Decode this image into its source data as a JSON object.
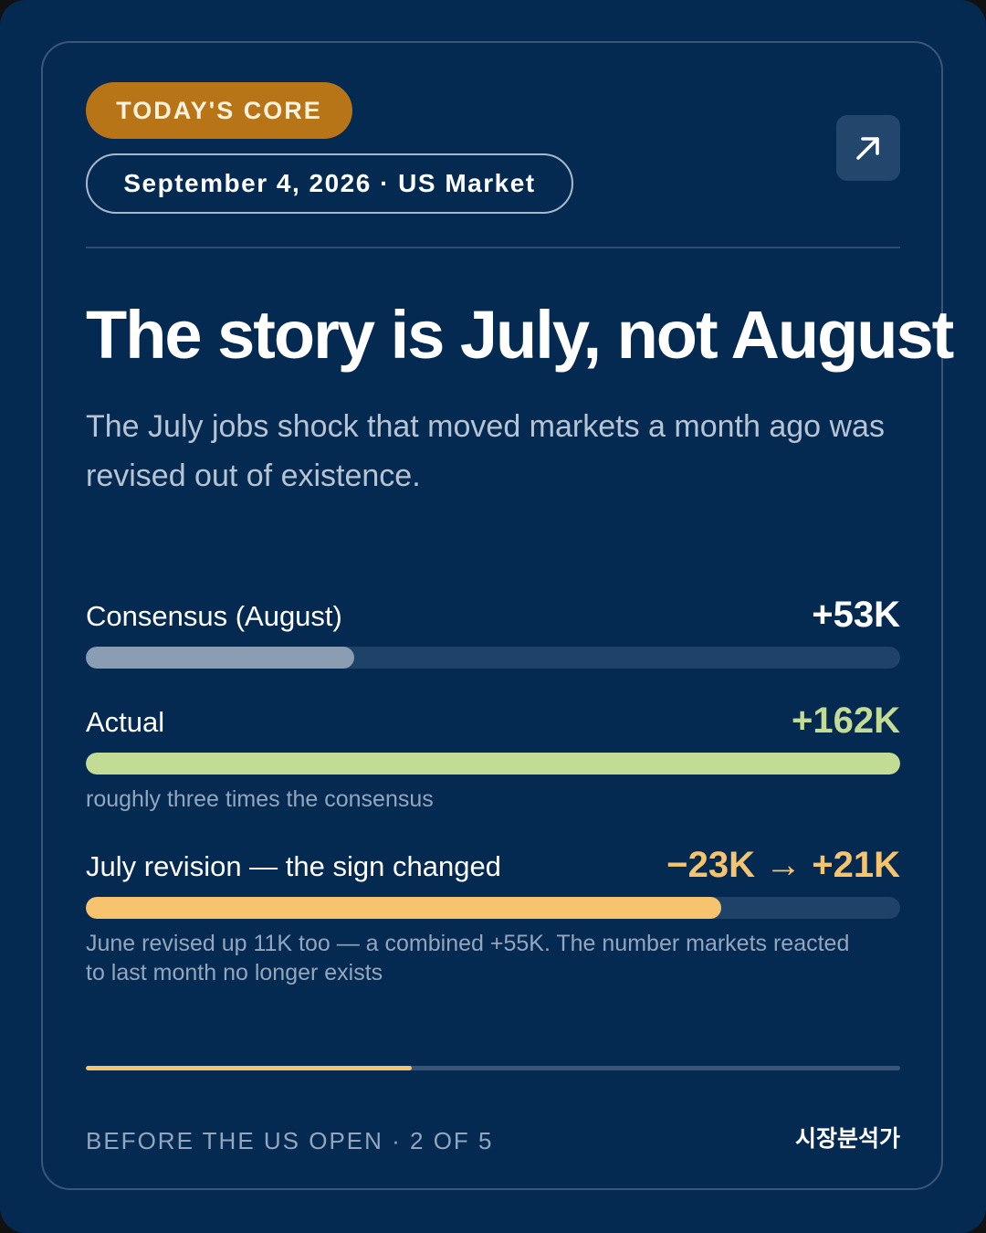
{
  "header": {
    "badge": "TODAY'S CORE",
    "date_market": "September 4, 2026 · US Market",
    "share_icon": "arrow-up-right-icon"
  },
  "headline": "The story is July, not August",
  "subhead": "The July jobs shock that moved markets a month ago was revised out of existence.",
  "metrics": [
    {
      "label": "Consensus (August)",
      "value": "+53K",
      "fill_fraction": 0.33,
      "color": "#8a9db2",
      "value_color": "#ffffff"
    },
    {
      "label": "Actual",
      "value": "+162K",
      "fill_fraction": 1.0,
      "color": "#c2dc96",
      "value_color": "#c2dc96",
      "note": "roughly three times the consensus"
    },
    {
      "label": "July revision — the sign changed",
      "value": "−23K → +21K",
      "fill_fraction": 0.78,
      "color": "#f6c36f",
      "value_color": "#f6c36f",
      "note": "June revised up 11K too — a combined +55K. The number markets reacted to last month no longer exists"
    }
  ],
  "progress": {
    "fraction": 0.4
  },
  "footer": {
    "left": "BEFORE THE US OPEN · 2 OF 5",
    "brand": "시장분석가"
  }
}
